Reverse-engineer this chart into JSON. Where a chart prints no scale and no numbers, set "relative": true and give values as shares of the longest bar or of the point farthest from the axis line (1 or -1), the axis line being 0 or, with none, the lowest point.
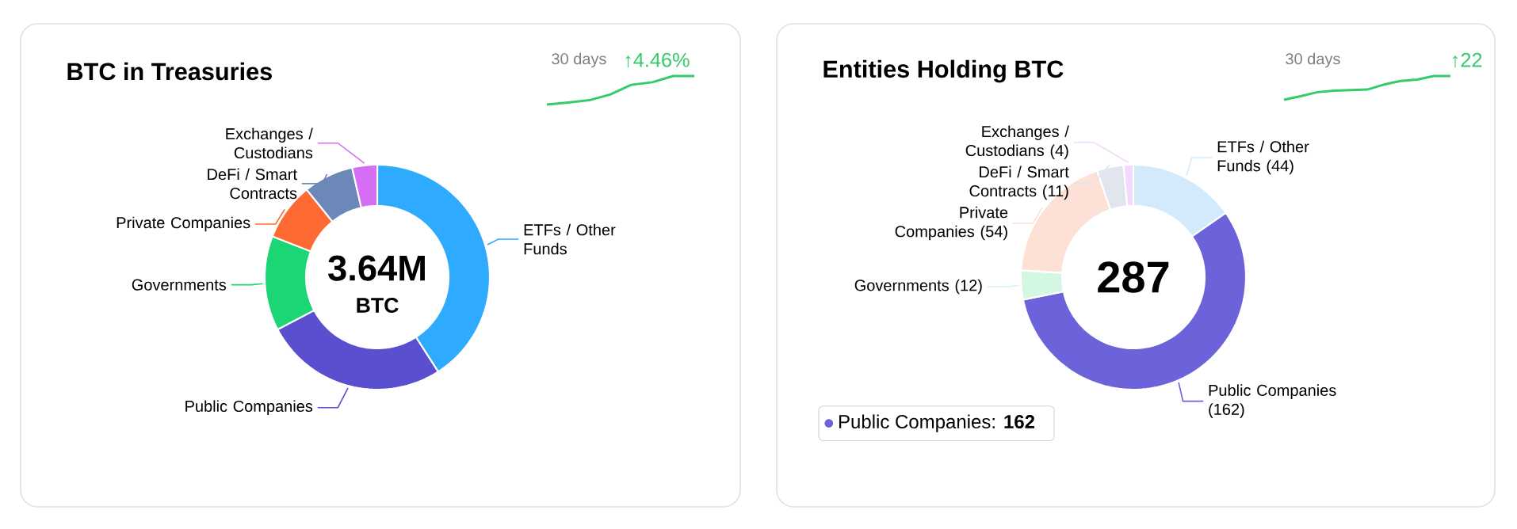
{
  "chart_data": [
    {
      "type": "donut",
      "title": "BTC in Treasuries",
      "categories": [
        "ETFs / Other Funds",
        "Public Companies",
        "Governments",
        "Private Companies",
        "DeFi / Smart Contracts",
        "Exchanges / Custodians"
      ],
      "values": [
        40.9,
        26.4,
        13.6,
        8.3,
        7.2,
        3.6
      ],
      "colors": [
        "#2eaaff",
        "#5a4fcf",
        "#1ad675",
        "#ff6a33",
        "#6b88b8",
        "#d66ef5"
      ],
      "annotations": [
        "3.64M",
        "BTC"
      ]
    },
    {
      "type": "line",
      "relative": true,
      "categories": [
        null,
        null,
        null,
        null,
        null,
        null,
        null,
        null
      ],
      "values": [
        0,
        0.07,
        0.15,
        0.35,
        0.69,
        0.78,
        1,
        1
      ],
      "color": "#33cc66",
      "annotations": [
        "30 days",
        "↑4.46%"
      ]
    },
    {
      "type": "donut",
      "title": "Entities Holding BTC",
      "categories": [
        "ETFs / Other Funds",
        "Public Companies",
        "Governments",
        "Private Companies",
        "DeFi / Smart Contracts",
        "Exchanges / Custodians"
      ],
      "values": [
        44,
        162,
        12,
        54,
        11,
        4
      ],
      "colors": [
        "#d3eafd",
        "#6c62d9",
        "#d4f7e4",
        "#fde0d6",
        "#e1e6ee",
        "#f3d9fb"
      ],
      "value_labels": [
        "(44)",
        "(162)",
        "(12)",
        "(54)",
        "(11)",
        "(4)"
      ],
      "annotations": [
        "287",
        "Public Companies: **162**"
      ]
    },
    {
      "type": "line",
      "relative": true,
      "categories": [
        null,
        null,
        null,
        null,
        null,
        null,
        null,
        null,
        null,
        null,
        null
      ],
      "values": [
        0,
        0.15,
        0.32,
        0.38,
        0.41,
        0.43,
        0.64,
        0.79,
        0.85,
        1,
        1
      ],
      "color": "#33cc66",
      "annotations": [
        "30 days",
        "↑22"
      ]
    }
  ]
}
